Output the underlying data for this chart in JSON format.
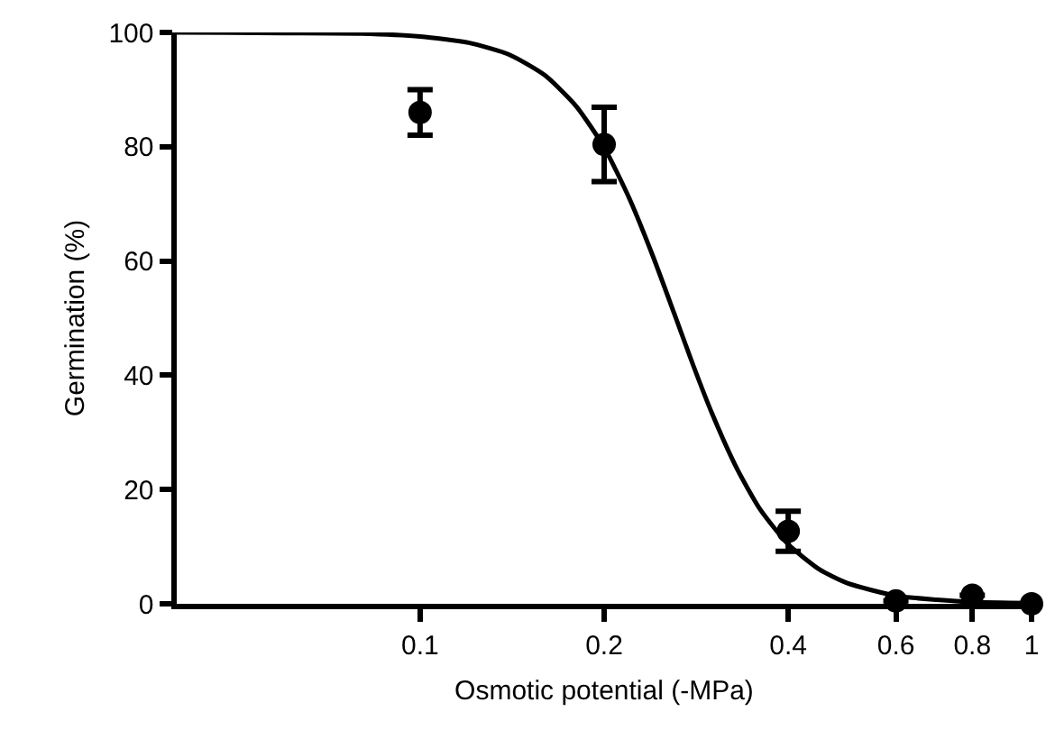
{
  "chart_data": {
    "type": "scatter",
    "xlabel": "Osmotic potential (-MPa)",
    "ylabel": "Germination (%)",
    "x": [
      0.1,
      0.2,
      0.4,
      0.6,
      0.8,
      1
    ],
    "series": [
      {
        "type": "scatter",
        "color": "#000000",
        "marker": "circle",
        "values": [
          86,
          80.4,
          12.7,
          0.5,
          1.5,
          0
        ],
        "errors": [
          4,
          6.5,
          3.5,
          null,
          null,
          null
        ]
      },
      {
        "type": "line",
        "color": "#000000",
        "marker": "none",
        "line_style": "solid",
        "x": [
          0.04,
          0.06,
          0.08,
          0.1,
          0.12,
          0.14,
          0.16,
          0.18,
          0.2,
          0.22,
          0.24,
          0.26,
          0.28,
          0.3,
          0.33,
          0.36,
          0.4,
          0.45,
          0.5,
          0.6,
          0.7,
          0.8,
          1
        ],
        "values": [
          100,
          99.9,
          99.8,
          99.3,
          98.2,
          96.1,
          92.5,
          87.1,
          79.9,
          70.9,
          61,
          51,
          41.6,
          33.4,
          23.6,
          16.5,
          10.4,
          6,
          3.6,
          1.4,
          0.7,
          0.3,
          0.1
        ]
      }
    ],
    "log": "x",
    "xlim": [
      0.04,
      1
    ],
    "xticks": [
      0.1,
      0.2,
      0.4,
      0.6,
      0.8,
      1
    ],
    "ylim": [
      0,
      100
    ],
    "yticks": [
      0,
      20,
      40,
      60,
      80,
      100
    ],
    "grid": false
  }
}
